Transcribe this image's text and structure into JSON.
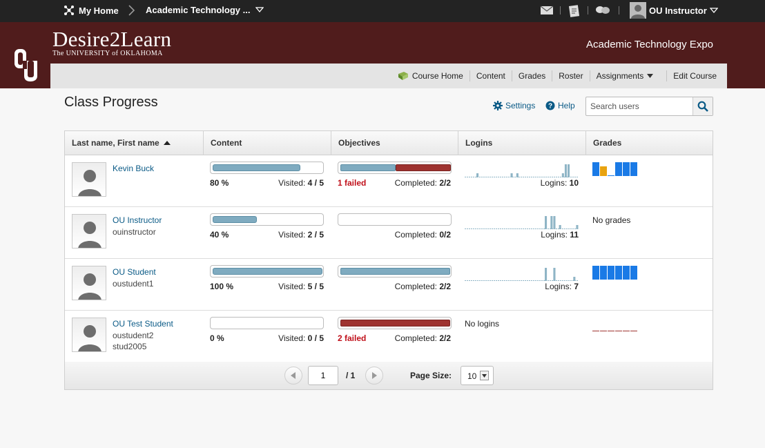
{
  "topbar": {
    "home_label": "My Home",
    "course_label": "Academic Technology ...",
    "user_label": "OU Instructor"
  },
  "banner": {
    "brand": "Desire2Learn",
    "brand_sub": "The UNIVERSITY of OKLAHOMA",
    "org_name": "Academic Technology Expo",
    "brand_color": "#501c1c"
  },
  "nav": {
    "items": [
      "Course Home",
      "Content",
      "Grades",
      "Roster",
      "Assignments",
      "Edit Course"
    ]
  },
  "page": {
    "title": "Class Progress",
    "settings_label": "Settings",
    "help_label": "Help",
    "search_placeholder": "Search users"
  },
  "table": {
    "headers": [
      "Last name, First name",
      "Content",
      "Objectives",
      "Logins",
      "Grades"
    ],
    "rows": [
      {
        "name": "Kevin Buck",
        "lines": [
          "",
          ""
        ],
        "content": {
          "percent": "80 %",
          "visited_label": "Visited:",
          "visited": "4 / 5",
          "fill": 0.8
        },
        "objectives": {
          "failed": "1 failed",
          "completed_label": "Completed:",
          "completed": "2/2",
          "ok_fraction": 0.5,
          "fail_fraction": 0.5
        },
        "logins": {
          "label": "Logins:",
          "count": "10",
          "spark": [
            0,
            0,
            0,
            0,
            1,
            0,
            0,
            0,
            0,
            0,
            0,
            0,
            0,
            0,
            0,
            0,
            1,
            0,
            1,
            0,
            0,
            0,
            0,
            0,
            0,
            0,
            0,
            0,
            0,
            0,
            0,
            0,
            0,
            0,
            1,
            3,
            3,
            0,
            0,
            0
          ]
        },
        "grades": {
          "bars": [
            1,
            0.7,
            0,
            1,
            1,
            1
          ],
          "colors": [
            "#1a7ae6",
            "#e8a310",
            "#1a7ae6",
            "#1a7ae6",
            "#1a7ae6",
            "#1a7ae6"
          ],
          "text": ""
        }
      },
      {
        "name": "OU Instructor",
        "lines": [
          "ouinstructor",
          ""
        ],
        "content": {
          "percent": "40 %",
          "visited_label": "Visited:",
          "visited": "2 / 5",
          "fill": 0.4
        },
        "objectives": {
          "failed": "",
          "completed_label": "Completed:",
          "completed": "0/2",
          "ok_fraction": 0,
          "fail_fraction": 0
        },
        "logins": {
          "label": "Logins:",
          "count": "11",
          "spark": [
            0,
            0,
            0,
            0,
            0,
            0,
            0,
            0,
            0,
            0,
            0,
            0,
            0,
            0,
            0,
            0,
            0,
            0,
            0,
            0,
            0,
            0,
            0,
            0,
            0,
            0,
            0,
            0,
            3,
            0,
            3,
            3,
            0,
            1,
            0,
            0,
            0,
            0,
            0,
            1
          ]
        },
        "grades": {
          "bars": [],
          "colors": [],
          "text": "No grades"
        }
      },
      {
        "name": "OU Student",
        "lines": [
          "oustudent1",
          ""
        ],
        "content": {
          "percent": "100 %",
          "visited_label": "Visited:",
          "visited": "5 / 5",
          "fill": 1.0
        },
        "objectives": {
          "failed": "",
          "completed_label": "Completed:",
          "completed": "2/2",
          "ok_fraction": 1.0,
          "fail_fraction": 0
        },
        "logins": {
          "label": "Logins:",
          "count": "7",
          "spark": [
            0,
            0,
            0,
            0,
            0,
            0,
            0,
            0,
            0,
            0,
            0,
            0,
            0,
            0,
            0,
            0,
            0,
            0,
            0,
            0,
            0,
            0,
            0,
            0,
            0,
            0,
            0,
            0,
            3,
            0,
            0,
            3,
            0,
            0,
            0,
            0,
            0,
            0,
            1,
            0
          ]
        },
        "grades": {
          "bars": [
            1,
            1,
            1,
            1,
            1,
            1
          ],
          "colors": [
            "#1a7ae6",
            "#1a7ae6",
            "#1a7ae6",
            "#1a7ae6",
            "#1a7ae6",
            "#1a7ae6"
          ],
          "text": ""
        }
      },
      {
        "name": "OU Test Student",
        "lines": [
          "oustudent2",
          "stud2005"
        ],
        "content": {
          "percent": "0 %",
          "visited_label": "Visited:",
          "visited": "0 / 5",
          "fill": 0
        },
        "objectives": {
          "failed": "2 failed",
          "completed_label": "Completed:",
          "completed": "2/2",
          "ok_fraction": 0,
          "fail_fraction": 1.0
        },
        "logins": {
          "label": "",
          "count": "",
          "spark": [],
          "none_text": "No logins"
        },
        "grades": {
          "bars": [
            0,
            0,
            0,
            0,
            0,
            0
          ],
          "colors": [
            "#9e3330",
            "#9e3330",
            "#9e3330",
            "#9e3330",
            "#9e3330",
            "#9e3330"
          ],
          "text": ""
        }
      }
    ]
  },
  "pagination": {
    "current_page": "1",
    "total": "/ 1",
    "page_size_label": "Page Size:",
    "page_size": "10"
  },
  "colors": {
    "link": "#0a5a86",
    "progress": "#7fabc0",
    "fail": "#9e3330",
    "failed_text": "#c0101a"
  }
}
